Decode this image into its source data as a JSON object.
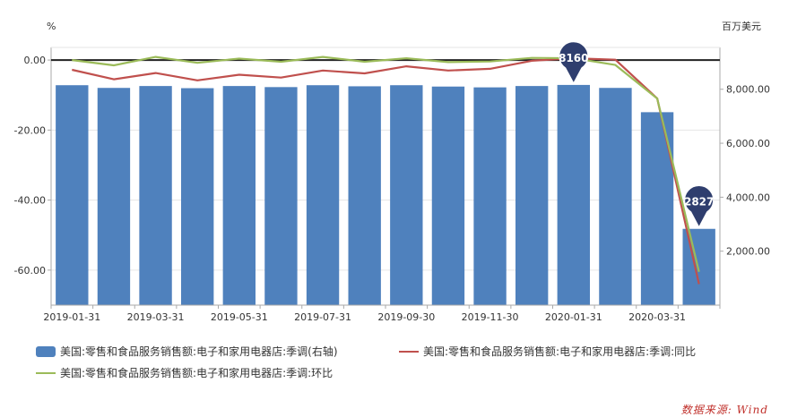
{
  "chart_data": {
    "type": "bar+line",
    "left_axis": {
      "unit": "%",
      "ticks": [
        0,
        -20,
        -40,
        -60
      ],
      "tick_labels": [
        "0.00",
        "-20.00",
        "-40.00",
        "-60.00"
      ],
      "range": [
        -70,
        3.6
      ]
    },
    "right_axis": {
      "unit": "百万美元",
      "ticks": [
        2000,
        4000,
        6000,
        8000
      ],
      "tick_labels": [
        "2,000.00",
        "4,000.00",
        "6,000.00",
        "8,000.00"
      ],
      "range": [
        0,
        9550
      ]
    },
    "x_tick_labels": [
      "2019-01-31",
      "2019-03-31",
      "2019-05-31",
      "2019-07-31",
      "2019-09-30",
      "2019-11-30",
      "2020-01-31",
      "2020-03-31"
    ],
    "x_tick_every": 2,
    "categories": [
      "2019-01-31",
      "2019-02-28",
      "2019-03-31",
      "2019-04-30",
      "2019-05-31",
      "2019-06-30",
      "2019-07-31",
      "2019-08-31",
      "2019-09-30",
      "2019-10-31",
      "2019-11-30",
      "2019-12-31",
      "2020-01-31",
      "2020-02-29",
      "2020-03-31",
      "2020-04-30"
    ],
    "series": [
      {
        "name": "美国:零售和食品服务销售额:电子和家用电器店:季调(右轴)",
        "type": "bar",
        "axis": "right",
        "color": "#4f81bd",
        "values": [
          8150,
          8050,
          8120,
          8040,
          8120,
          8080,
          8150,
          8110,
          8150,
          8100,
          8070,
          8120,
          8160,
          8050,
          7150,
          2827
        ]
      },
      {
        "name": "美国:零售和食品服务销售额:电子和家用电器店:季调:同比",
        "type": "line",
        "axis": "left",
        "color": "#c0504d",
        "values": [
          -2.8,
          -5.5,
          -3.7,
          -5.8,
          -4.2,
          -5.0,
          -3.0,
          -3.8,
          -1.8,
          -3.0,
          -2.5,
          -0.2,
          0.5,
          0.1,
          -11.0,
          -64.0
        ]
      },
      {
        "name": "美国:零售和食品服务销售额:电子和家用电器店:季调:环比",
        "type": "line",
        "axis": "left",
        "color": "#9bbb59",
        "values": [
          0.0,
          -1.5,
          0.9,
          -0.8,
          0.4,
          -0.5,
          0.9,
          -0.5,
          0.5,
          -0.6,
          -0.4,
          0.6,
          0.5,
          -1.4,
          -11.0,
          -60.5
        ]
      }
    ],
    "annotations": [
      {
        "category": "2020-01-31",
        "series": 0,
        "label": "8160"
      },
      {
        "category": "2020-04-30",
        "series": 0,
        "label": "2827"
      }
    ],
    "source": "数据来源: Wind"
  },
  "legend": {
    "bar_label": "美国:零售和食品服务销售额:电子和家用电器店:季调(右轴)",
    "yoy_label": "美国:零售和食品服务销售额:电子和家用电器店:季调:同比",
    "mom_label": "美国:零售和食品服务销售额:电子和家用电器店:季调:环比"
  }
}
